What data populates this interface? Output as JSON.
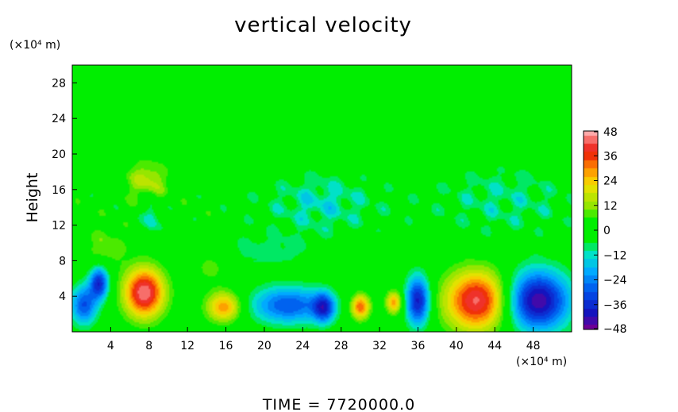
{
  "chart_data": {
    "type": "heatmap",
    "title": "vertical velocity",
    "ylabel": "Height",
    "y_unit": "(×10⁴ m)",
    "x_unit": "(×10⁴ m)",
    "xlim": [
      0,
      52
    ],
    "ylim": [
      0,
      30
    ],
    "x_ticks": [
      4,
      8,
      12,
      16,
      20,
      24,
      28,
      32,
      36,
      40,
      44,
      48
    ],
    "y_ticks": [
      4,
      8,
      12,
      16,
      20,
      24,
      28
    ],
    "colorbar": {
      "ticks": [
        48,
        36,
        24,
        12,
        0,
        -12,
        -24,
        -36,
        -48
      ],
      "range": [
        -48,
        48
      ]
    },
    "footer": "TIME = 7720000.0",
    "features": [
      {
        "x": 1.2,
        "y": 3.0,
        "value": -30,
        "sx": 1.0,
        "sy": 1.6
      },
      {
        "x": 2.8,
        "y": 5.5,
        "value": -36,
        "sx": 0.7,
        "sy": 1.3
      },
      {
        "x": 7.5,
        "y": 4.4,
        "value": 46,
        "sx": 1.5,
        "sy": 2.0
      },
      {
        "x": 15.8,
        "y": 2.8,
        "value": 30,
        "sx": 1.3,
        "sy": 1.2
      },
      {
        "x": 22.5,
        "y": 3.0,
        "value": -30,
        "sx": 2.8,
        "sy": 1.5
      },
      {
        "x": 26.2,
        "y": 2.7,
        "value": -30,
        "sx": 0.8,
        "sy": 1.2
      },
      {
        "x": 30.0,
        "y": 2.8,
        "value": 34,
        "sx": 0.7,
        "sy": 1.0
      },
      {
        "x": 33.5,
        "y": 3.3,
        "value": 28,
        "sx": 0.6,
        "sy": 0.9
      },
      {
        "x": 36.0,
        "y": 3.5,
        "value": -40,
        "sx": 0.9,
        "sy": 2.0
      },
      {
        "x": 42.2,
        "y": 3.5,
        "value": 44,
        "sx": 2.4,
        "sy": 2.4
      },
      {
        "x": 48.4,
        "y": 3.5,
        "value": -46,
        "sx": 2.4,
        "sy": 2.4
      },
      {
        "x": 7.8,
        "y": 17.0,
        "value": 16,
        "sx": 1.5,
        "sy": 1.6
      },
      {
        "x": 8.3,
        "y": 13.0,
        "value": -15,
        "sx": 0.6,
        "sy": 1.5
      },
      {
        "x": 20.0,
        "y": 9.0,
        "value": -8,
        "sx": 4.0,
        "sy": 1.5
      },
      {
        "x": 26.0,
        "y": 14.5,
        "value": -12,
        "sx": 4.0,
        "sy": 2.5
      },
      {
        "x": 45.0,
        "y": 15.0,
        "value": -9,
        "sx": 5.0,
        "sy": 3.0
      },
      {
        "x": 3.5,
        "y": 9.5,
        "value": 10,
        "sx": 1.5,
        "sy": 1.5
      },
      {
        "x": 14.5,
        "y": 7.5,
        "value": 9,
        "sx": 1.5,
        "sy": 1.5
      }
    ]
  }
}
